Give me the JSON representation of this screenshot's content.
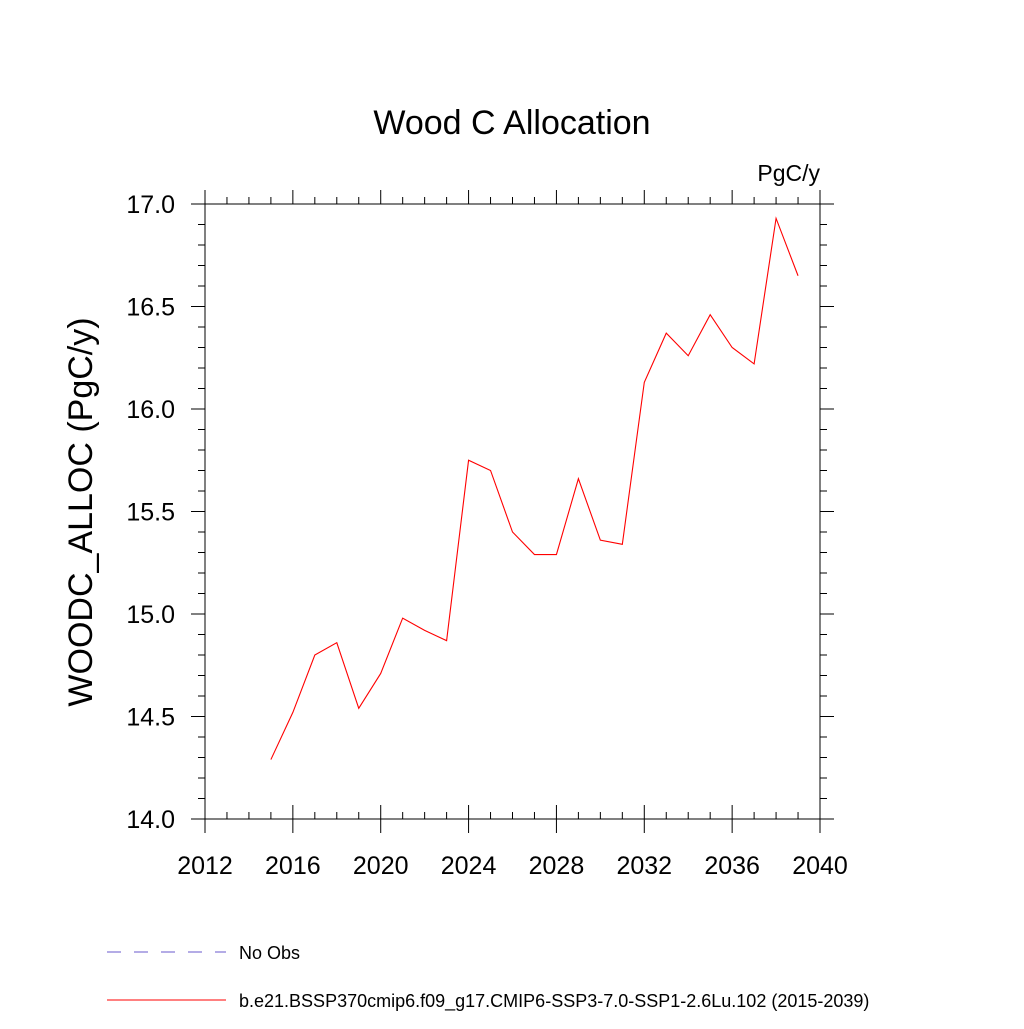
{
  "chart_data": {
    "type": "line",
    "title": "Wood C Allocation",
    "units_label": "PgC/y",
    "xlabel": "",
    "ylabel": "WOODC_ALLOC  (PgC/y)",
    "xlim": [
      2012,
      2040
    ],
    "ylim": [
      14.0,
      17.0
    ],
    "x_ticks": [
      2012,
      2016,
      2020,
      2024,
      2028,
      2032,
      2036,
      2040
    ],
    "x_tick_labels": [
      "2012",
      "2016",
      "2020",
      "2024",
      "2028",
      "2032",
      "2036",
      "2040"
    ],
    "x_minor_step": 1,
    "y_ticks": [
      14.0,
      14.5,
      15.0,
      15.5,
      16.0,
      16.5,
      17.0
    ],
    "y_tick_labels": [
      "14.0",
      "14.5",
      "15.0",
      "15.5",
      "16.0",
      "16.5",
      "17.0"
    ],
    "y_minor_step": 0.1,
    "grid": false,
    "legend_position": "bottom",
    "series": [
      {
        "name": "b.e21.BSSP370cmip6.f09_g17.CMIP6-SSP3-7.0-SSP1-2.6Lu.102 (2015-2039)",
        "color": "#ff0000",
        "style": "solid",
        "x": [
          2015,
          2016,
          2017,
          2018,
          2019,
          2020,
          2021,
          2022,
          2023,
          2024,
          2025,
          2026,
          2027,
          2028,
          2029,
          2030,
          2031,
          2032,
          2033,
          2034,
          2035,
          2036,
          2037,
          2038,
          2039
        ],
        "values": [
          14.29,
          14.52,
          14.8,
          14.86,
          14.54,
          14.71,
          14.98,
          14.92,
          14.87,
          15.75,
          15.7,
          15.4,
          15.29,
          15.29,
          15.66,
          15.36,
          15.34,
          16.13,
          16.37,
          16.26,
          16.46,
          16.3,
          16.22,
          16.93,
          16.65
        ]
      }
    ],
    "legend": [
      {
        "label": "No Obs",
        "color": "#6a5acd",
        "style": "dashed"
      },
      {
        "label": "b.e21.BSSP370cmip6.f09_g17.CMIP6-SSP3-7.0-SSP1-2.6Lu.102 (2015-2039)",
        "color": "#ff0000",
        "style": "solid"
      }
    ]
  }
}
